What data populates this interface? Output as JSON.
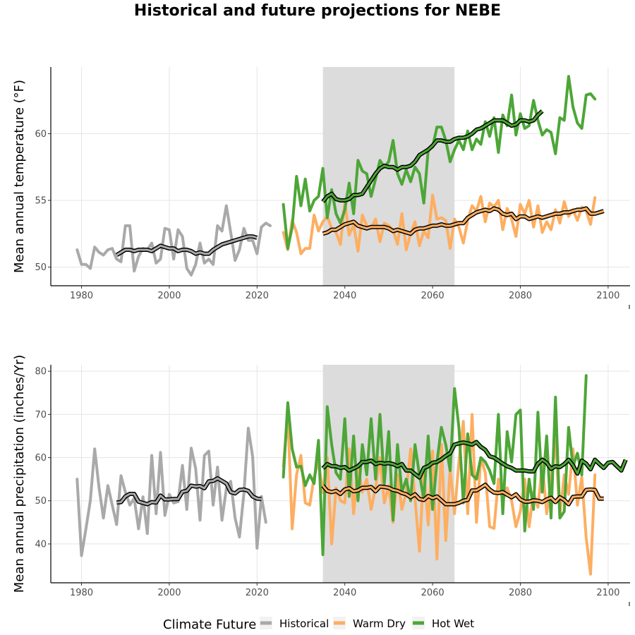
{
  "title": "Historical and future projections for NEBE",
  "legend": {
    "title": "Climate Future",
    "items": [
      {
        "label": "Historical",
        "color": "#a9a9a9"
      },
      {
        "label": "Warm Dry",
        "color": "#fdae61"
      },
      {
        "label": "Hot Wet",
        "color": "#4da637"
      }
    ]
  },
  "colors": {
    "historical": "#a9a9a9",
    "warm_dry": "#fdae61",
    "hot_wet": "#4da637",
    "smooth_outline": "#000000",
    "shade": "#dcdcdc"
  },
  "chart_data": [
    {
      "type": "line",
      "ylabel": "Mean annual temperature (°F)",
      "xlim": [
        1973,
        2105
      ],
      "ylim": [
        48.6,
        65.0
      ],
      "xticks": [
        1980,
        2000,
        2020,
        2040,
        2060,
        2080,
        2100
      ],
      "yticks": [
        50,
        55,
        60
      ],
      "shaded_period": [
        2035,
        2065
      ],
      "series": [
        {
          "name": "Historical",
          "color": "#a9a9a9",
          "x_start": 1979,
          "values": [
            51.3,
            50.2,
            50.2,
            49.9,
            51.5,
            51.1,
            50.9,
            51.3,
            51.4,
            50.6,
            50.4,
            53.1,
            53.1,
            49.7,
            50.8,
            51.4,
            51.3,
            51.8,
            50.3,
            50.6,
            52.9,
            52.8,
            50.6,
            52.8,
            52.3,
            49.9,
            49.4,
            50.2,
            51.8,
            50.3,
            50.6,
            50.2,
            53.1,
            52.7,
            54.6,
            52.6,
            50.5,
            51.3,
            52.9,
            52.0,
            52.0,
            51.0,
            53.0,
            53.3,
            53.1
          ]
        },
        {
          "name": "Historical (smoothed)",
          "color": "#a9a9a9",
          "smooth": true,
          "x_start": 1988,
          "values": [
            50.9,
            51.1,
            51.3,
            51.3,
            51.2,
            51.3,
            51.3,
            51.3,
            51.2,
            51.4,
            51.6,
            51.5,
            51.4,
            51.4,
            51.2,
            51.3,
            51.3,
            51.2,
            51.0,
            51.1,
            51.0,
            51.0,
            51.3,
            51.5,
            51.7,
            51.8,
            51.9,
            52.0,
            52.1,
            52.2,
            52.3,
            52.3,
            52.2
          ]
        },
        {
          "name": "Warm Dry",
          "color": "#fdae61",
          "x_start": 2026,
          "values": [
            52.6,
            51.3,
            53.5,
            52.6,
            51.0,
            51.4,
            51.4,
            53.9,
            52.7,
            53.4,
            53.8,
            52.9,
            52.6,
            51.7,
            54.9,
            52.4,
            53.2,
            51.2,
            53.9,
            53.1,
            52.9,
            53.6,
            51.9,
            53.3,
            53.1,
            52.8,
            51.7,
            54.0,
            51.3,
            52.5,
            53.4,
            51.6,
            52.7,
            52.2,
            55.4,
            53.6,
            53.7,
            53.5,
            51.4,
            53.6,
            53.0,
            51.8,
            53.5,
            54.6,
            54.2,
            55.3,
            53.4,
            54.8,
            54.5,
            55.0,
            52.8,
            54.4,
            53.6,
            52.3,
            54.7,
            54.0,
            55.0,
            53.0,
            54.6,
            52.6,
            53.4,
            52.8,
            54.3,
            53.3,
            54.9,
            53.8,
            54.3,
            53.5,
            54.5,
            54.2,
            53.2,
            55.2
          ]
        },
        {
          "name": "Warm Dry (smoothed)",
          "color": "#fdae61",
          "smooth": true,
          "x_start": 2035,
          "values": [
            52.5,
            52.6,
            52.8,
            52.8,
            53.0,
            53.2,
            53.3,
            53.4,
            53.1,
            53.0,
            52.9,
            53.0,
            53.0,
            53.0,
            53.0,
            52.9,
            52.7,
            52.8,
            52.7,
            52.6,
            52.5,
            52.8,
            52.9,
            52.9,
            53.0,
            53.1,
            53.1,
            53.2,
            53.1,
            53.1,
            53.2,
            53.3,
            53.3,
            53.7,
            53.9,
            54.1,
            54.2,
            54.3,
            54.2,
            54.4,
            54.3,
            54.0,
            53.9,
            54.0,
            53.6,
            53.8,
            53.8,
            53.6,
            53.7,
            53.8,
            53.7,
            53.8,
            53.9,
            54.0,
            54.0,
            54.1,
            54.1,
            54.2,
            54.3,
            54.3,
            54.4,
            54.0,
            54.0,
            54.1,
            54.2
          ]
        },
        {
          "name": "Hot Wet",
          "color": "#4da637",
          "x_start": 2026,
          "values": [
            54.7,
            51.4,
            53.0,
            56.8,
            54.6,
            56.6,
            54.2,
            55.0,
            55.3,
            57.4,
            53.7,
            55.8,
            54.0,
            53.3,
            54.3,
            56.3,
            54.0,
            58.0,
            57.2,
            57.0,
            55.3,
            56.6,
            58.0,
            57.5,
            57.9,
            59.5,
            57.0,
            56.2,
            57.3,
            56.4,
            57.5,
            57.0,
            54.8,
            58.8,
            59.0,
            60.5,
            60.5,
            59.5,
            57.9,
            58.8,
            59.5,
            58.8,
            60.2,
            58.8,
            59.6,
            59.2,
            60.9,
            59.8,
            61.2,
            58.6,
            61.4,
            60.6,
            62.9,
            59.9,
            61.5,
            60.4,
            60.6,
            62.5,
            61.0,
            59.9,
            60.3,
            60.1,
            58.5,
            61.2,
            61.0,
            64.3,
            62.0,
            60.8,
            60.4,
            62.9,
            63.0,
            62.6
          ]
        },
        {
          "name": "Hot Wet (smoothed)",
          "color": "#4da637",
          "smooth": true,
          "x_start": 2035,
          "values": [
            54.9,
            55.3,
            55.5,
            55.1,
            55.0,
            55.0,
            55.1,
            55.4,
            55.4,
            55.5,
            56.0,
            56.5,
            57.0,
            57.4,
            57.6,
            57.5,
            57.5,
            57.3,
            57.5,
            57.5,
            57.6,
            57.9,
            58.4,
            58.6,
            58.8,
            59.1,
            59.5,
            59.5,
            59.4,
            59.4,
            59.6,
            59.7,
            59.7,
            59.8,
            60.0,
            60.3,
            60.4,
            60.6,
            60.8,
            61.0,
            61.0,
            61.0,
            60.8,
            60.6,
            60.7,
            61.0,
            61.0,
            60.9,
            61.0,
            61.4,
            61.7
          ]
        }
      ]
    },
    {
      "type": "line",
      "ylabel": "Mean annual precipitation (inches/Yr)",
      "xlim": [
        1973,
        2105
      ],
      "ylim": [
        31.0,
        81.5
      ],
      "xticks": [
        1980,
        2000,
        2020,
        2040,
        2060,
        2080,
        2100
      ],
      "yticks": [
        40,
        50,
        60,
        70,
        80
      ],
      "shaded_period": [
        2035,
        2065
      ],
      "series": [
        {
          "name": "Historical",
          "color": "#a9a9a9",
          "x_start": 1979,
          "values": [
            55.0,
            37.3,
            43.5,
            50.0,
            62.0,
            53.0,
            46.0,
            53.5,
            49.0,
            44.5,
            55.8,
            52.0,
            49.0,
            50.6,
            43.5,
            50.9,
            42.4,
            60.5,
            47.0,
            61.2,
            46.6,
            51.5,
            49.5,
            49.8,
            58.2,
            48.0,
            62.2,
            57.5,
            45.5,
            60.5,
            61.5,
            49.0,
            57.8,
            45.5,
            52.8,
            54.5,
            46.0,
            41.6,
            51.7,
            66.8,
            60.2,
            39.0,
            51.0,
            45.0
          ]
        },
        {
          "name": "Historical (smoothed)",
          "color": "#a9a9a9",
          "smooth": true,
          "x_start": 1988,
          "values": [
            49.6,
            49.7,
            51.0,
            51.6,
            51.6,
            49.8,
            49.5,
            49.2,
            49.7,
            49.6,
            51.2,
            50.3,
            50.3,
            50.4,
            50.4,
            52.1,
            52.3,
            53.5,
            53.3,
            53.4,
            52.9,
            54.5,
            54.6,
            55.2,
            54.6,
            54.0,
            52.0,
            51.7,
            52.5,
            52.6,
            52.3,
            51.0,
            50.5,
            50.4
          ]
        },
        {
          "name": "Warm Dry",
          "color": "#fdae61",
          "x_start": 2026,
          "values": [
            58.0,
            70.0,
            43.5,
            56.0,
            60.5,
            49.5,
            49.0,
            55.5,
            59.0,
            51.9,
            60.0,
            40.0,
            53.0,
            50.0,
            49.5,
            62.0,
            47.0,
            58.0,
            52.0,
            55.0,
            48.0,
            53.0,
            60.0,
            49.5,
            53.5,
            45.0,
            56.0,
            48.0,
            52.0,
            62.0,
            50.5,
            38.3,
            57.5,
            44.4,
            61.5,
            36.5,
            63.0,
            40.8,
            57.5,
            47.0,
            59.0,
            68.4,
            47.0,
            70.0,
            45.0,
            60.0,
            56.5,
            44.0,
            43.6,
            55.0,
            50.0,
            53.0,
            50.0,
            44.0,
            47.5,
            55.0,
            44.0,
            52.0,
            48.5,
            58.5,
            47.0,
            55.0,
            64.0,
            46.5,
            56.0,
            51.5,
            62.0,
            49.0,
            55.5,
            41.5,
            33.0,
            56.0
          ]
        },
        {
          "name": "Warm Dry (smoothed)",
          "color": "#fdae61",
          "smooth": true,
          "x_start": 2035,
          "values": [
            53.5,
            52.3,
            52.0,
            52.3,
            51.6,
            52.6,
            52.9,
            52.2,
            52.4,
            53.0,
            53.0,
            53.2,
            52.2,
            53.3,
            53.2,
            53.0,
            52.5,
            52.3,
            51.8,
            51.5,
            50.8,
            51.5,
            50.4,
            50.2,
            51.1,
            50.6,
            51.0,
            50.1,
            49.2,
            49.2,
            49.2,
            49.5,
            50.0,
            50.2,
            52.4,
            52.4,
            53.0,
            53.7,
            52.6,
            51.9,
            51.8,
            52.0,
            51.4,
            50.8,
            51.5,
            50.3,
            49.8,
            49.8,
            50.1,
            50.0,
            49.7,
            50.3,
            50.7,
            49.7,
            50.8,
            50.2,
            49.2,
            50.9,
            51.0,
            51.0,
            52.5,
            52.6,
            52.5,
            50.5,
            50.5
          ]
        },
        {
          "name": "Hot Wet",
          "color": "#4da637",
          "x_start": 2026,
          "values": [
            55.5,
            72.7,
            62.0,
            57.8,
            58.0,
            53.5,
            56.0,
            54.0,
            64.0,
            37.5,
            71.8,
            63.0,
            56.5,
            55.0,
            69.0,
            51.0,
            65.0,
            50.0,
            63.0,
            56.0,
            69.0,
            55.0,
            70.0,
            54.0,
            66.0,
            45.5,
            63.0,
            52.0,
            55.0,
            50.0,
            63.0,
            56.0,
            50.5,
            65.0,
            48.0,
            59.0,
            67.0,
            63.0,
            57.0,
            76.0,
            67.0,
            49.5,
            65.5,
            56.0,
            55.0,
            60.0,
            59.0,
            57.0,
            54.0,
            70.0,
            47.0,
            66.0,
            59.0,
            70.0,
            71.0,
            43.0,
            55.0,
            48.0,
            70.5,
            52.0,
            65.0,
            46.0,
            74.0,
            46.0,
            47.5,
            67.0,
            58.0,
            61.0,
            56.0,
            79.0
          ]
        },
        {
          "name": "Hot Wet (smoothed)",
          "color": "#4da637",
          "smooth": true,
          "x_start": 2035,
          "values": [
            57.5,
            58.5,
            58.0,
            58.0,
            57.6,
            57.8,
            57.0,
            57.5,
            58.0,
            59.0,
            59.0,
            59.3,
            58.5,
            58.8,
            58.6,
            58.7,
            58.5,
            58.0,
            58.5,
            57.0,
            57.0,
            56.2,
            55.4,
            57.6,
            58.0,
            58.8,
            59.0,
            59.6,
            60.4,
            61.0,
            63.0,
            63.3,
            63.5,
            63.3,
            63.0,
            63.6,
            62.5,
            61.8,
            60.3,
            60.0,
            59.3,
            58.6,
            58.0,
            57.6,
            57.0,
            57.0,
            57.0,
            56.8,
            56.8,
            58.6,
            59.5,
            58.8,
            57.4,
            58.0,
            57.8,
            58.5,
            59.5,
            58.2,
            56.3,
            59.3,
            58.6,
            57.3,
            59.5,
            58.5,
            57.6,
            58.8,
            59.0,
            58.0,
            57.0,
            59.5
          ]
        }
      ]
    }
  ]
}
